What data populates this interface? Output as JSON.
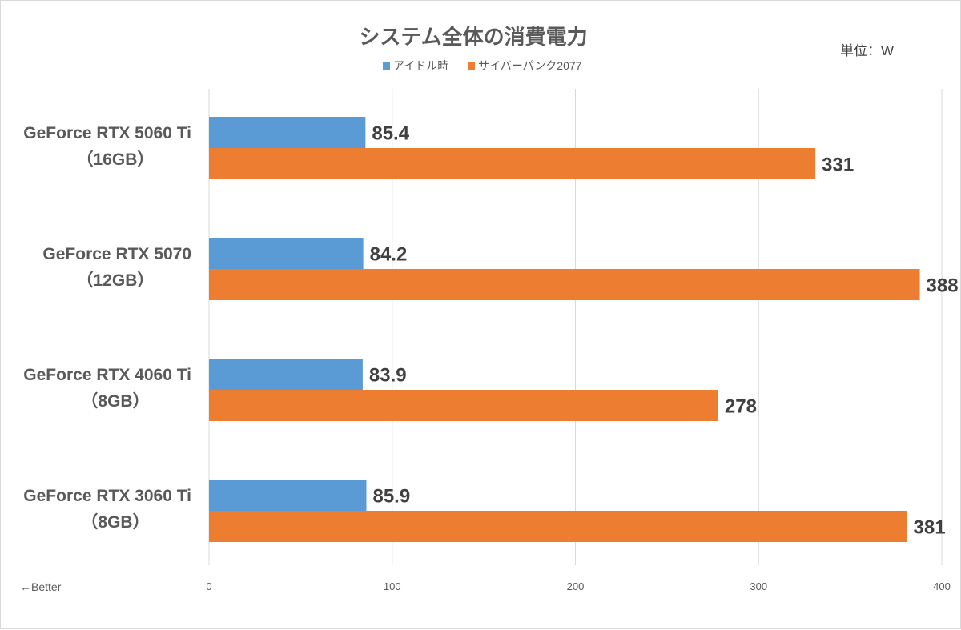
{
  "chart_data": {
    "type": "bar",
    "orientation": "horizontal",
    "title": "システム全体の消費電力",
    "unit_label": "単位：W",
    "note": "←Better",
    "categories": [
      [
        "GeForce RTX 5060 Ti",
        "（16GB）"
      ],
      [
        "GeForce RTX 5070",
        "（12GB）"
      ],
      [
        "GeForce RTX 4060 Ti",
        "（8GB）"
      ],
      [
        "GeForce RTX 3060 Ti",
        "（8GB）"
      ]
    ],
    "series": [
      {
        "name": "アイドル時",
        "color": "#5b9bd5",
        "values": [
          85.4,
          84.2,
          83.9,
          85.9
        ],
        "labels": [
          "85.4",
          "84.2",
          "83.9",
          "85.9"
        ]
      },
      {
        "name": "サイバーパンク2077",
        "color": "#ed7d31",
        "values": [
          331,
          388,
          278,
          381
        ],
        "labels": [
          "331",
          "388",
          "278",
          "381"
        ]
      }
    ],
    "xlim": [
      0,
      400
    ],
    "xticks": [
      "0",
      "100",
      "200",
      "300",
      "400"
    ],
    "grid": true,
    "legend_position": "top-center"
  }
}
